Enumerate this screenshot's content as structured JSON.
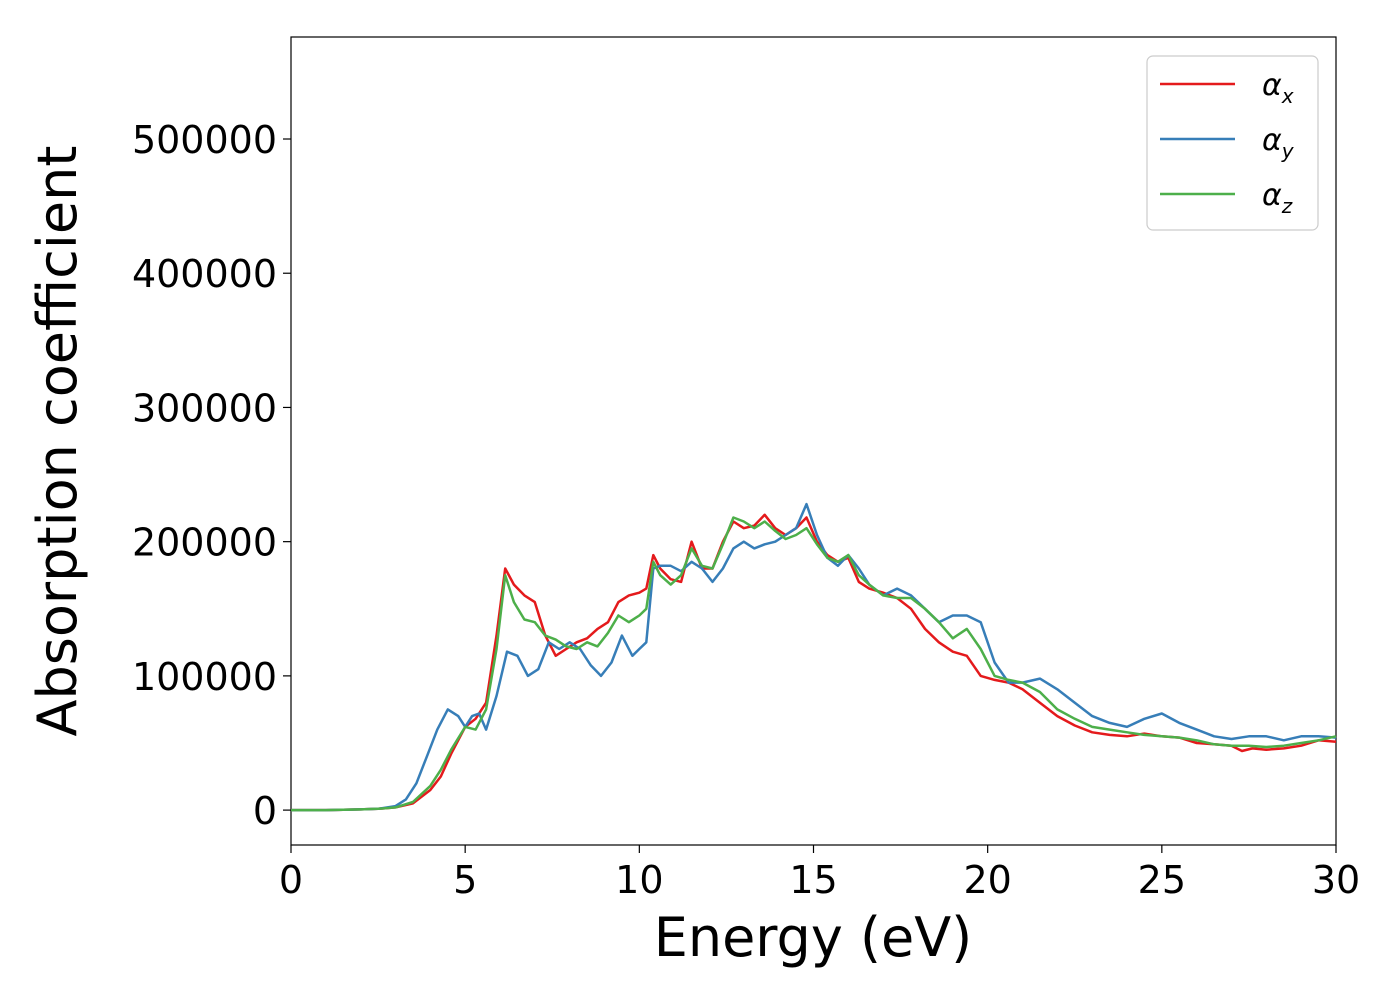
{
  "chart_data": {
    "type": "line",
    "xlabel": "Energy (eV)",
    "ylabel": "Absorption coefficient",
    "xlim": [
      0,
      30
    ],
    "ylim": [
      -26000,
      576000
    ],
    "x_ticks": [
      "0",
      "5",
      "10",
      "15",
      "20",
      "25",
      "30"
    ],
    "y_ticks": [
      "0",
      "100000",
      "200000",
      "300000",
      "400000",
      "500000"
    ],
    "grid": false,
    "legend_position": "top-right",
    "series": [
      {
        "name": "α_x",
        "legend_base": "α",
        "legend_sub": "x",
        "color": "#e41a1c",
        "x": [
          0,
          1,
          2,
          2.5,
          3,
          3.5,
          4,
          4.3,
          4.6,
          5,
          5.3,
          5.6,
          5.9,
          6.15,
          6.4,
          6.7,
          7,
          7.3,
          7.6,
          7.9,
          8.2,
          8.5,
          8.8,
          9.1,
          9.4,
          9.7,
          10,
          10.2,
          10.4,
          10.6,
          10.9,
          11.2,
          11.5,
          11.8,
          12.1,
          12.4,
          12.7,
          13,
          13.3,
          13.6,
          13.9,
          14.2,
          14.5,
          14.8,
          15.1,
          15.4,
          15.7,
          16,
          16.3,
          16.6,
          17,
          17.4,
          17.8,
          18.2,
          18.6,
          19,
          19.4,
          19.8,
          20.2,
          20.6,
          21,
          21.5,
          22,
          22.5,
          23,
          23.5,
          24,
          24.5,
          25,
          25.5,
          26,
          26.5,
          27,
          27.3,
          27.6,
          28,
          28.5,
          29,
          29.5,
          30
        ],
        "y": [
          0,
          0,
          500,
          1000,
          2000,
          5000,
          15000,
          25000,
          42000,
          62000,
          68000,
          80000,
          130000,
          180000,
          168000,
          160000,
          155000,
          130000,
          115000,
          120000,
          125000,
          128000,
          135000,
          140000,
          155000,
          160000,
          162000,
          165000,
          190000,
          180000,
          172000,
          170000,
          200000,
          180000,
          180000,
          200000,
          215000,
          210000,
          212000,
          220000,
          210000,
          205000,
          210000,
          218000,
          200000,
          190000,
          185000,
          188000,
          170000,
          165000,
          162000,
          158000,
          150000,
          135000,
          125000,
          118000,
          115000,
          100000,
          97000,
          95000,
          90000,
          80000,
          70000,
          63000,
          58000,
          56000,
          55000,
          57000,
          55000,
          54000,
          50000,
          49000,
          48000,
          44000,
          46000,
          45000,
          46000,
          48000,
          52000,
          51000
        ]
      },
      {
        "name": "α_y",
        "legend_base": "α",
        "legend_sub": "y",
        "color": "#377eb8",
        "x": [
          0,
          1,
          2,
          2.5,
          3,
          3.3,
          3.6,
          3.9,
          4.2,
          4.5,
          4.8,
          5,
          5.2,
          5.4,
          5.6,
          5.9,
          6.2,
          6.5,
          6.8,
          7.1,
          7.4,
          7.7,
          8,
          8.3,
          8.6,
          8.9,
          9.2,
          9.5,
          9.8,
          10,
          10.2,
          10.4,
          10.6,
          10.9,
          11.2,
          11.5,
          11.8,
          12.1,
          12.4,
          12.7,
          13,
          13.3,
          13.6,
          13.9,
          14.2,
          14.5,
          14.8,
          15.1,
          15.4,
          15.7,
          16,
          16.3,
          16.6,
          17,
          17.4,
          17.8,
          18.2,
          18.6,
          19,
          19.4,
          19.8,
          20.2,
          20.6,
          21,
          21.5,
          22,
          22.5,
          23,
          23.5,
          24,
          24.5,
          25,
          25.5,
          26,
          26.5,
          27,
          27.5,
          28,
          28.5,
          29,
          29.5,
          30
        ],
        "y": [
          0,
          0,
          500,
          1000,
          3000,
          8000,
          20000,
          40000,
          60000,
          75000,
          70000,
          62000,
          70000,
          72000,
          60000,
          85000,
          118000,
          115000,
          100000,
          105000,
          125000,
          120000,
          125000,
          120000,
          108000,
          100000,
          110000,
          130000,
          115000,
          120000,
          125000,
          180000,
          182000,
          182000,
          178000,
          185000,
          180000,
          170000,
          180000,
          195000,
          200000,
          195000,
          198000,
          200000,
          205000,
          210000,
          228000,
          205000,
          188000,
          182000,
          190000,
          180000,
          168000,
          160000,
          165000,
          160000,
          150000,
          140000,
          145000,
          145000,
          140000,
          110000,
          95000,
          95000,
          98000,
          90000,
          80000,
          70000,
          65000,
          62000,
          68000,
          72000,
          65000,
          60000,
          55000,
          53000,
          55000,
          55000,
          52000,
          55000,
          55000,
          54000
        ]
      },
      {
        "name": "α_z",
        "legend_base": "α",
        "legend_sub": "z",
        "color": "#4daf4a",
        "x": [
          0,
          1,
          2,
          2.5,
          3,
          3.5,
          4,
          4.3,
          4.6,
          5,
          5.3,
          5.6,
          5.9,
          6.15,
          6.4,
          6.7,
          7,
          7.3,
          7.6,
          7.9,
          8.2,
          8.5,
          8.8,
          9.1,
          9.4,
          9.7,
          10,
          10.2,
          10.4,
          10.6,
          10.9,
          11.2,
          11.5,
          11.8,
          12.1,
          12.4,
          12.7,
          13,
          13.3,
          13.6,
          13.9,
          14.2,
          14.5,
          14.8,
          15.1,
          15.4,
          15.7,
          16,
          16.3,
          16.6,
          17,
          17.4,
          17.8,
          18.2,
          18.6,
          19,
          19.4,
          19.8,
          20.2,
          20.6,
          21,
          21.5,
          22,
          22.5,
          23,
          23.5,
          24,
          24.5,
          25,
          25.5,
          26,
          26.5,
          27,
          27.5,
          28,
          28.5,
          29,
          29.5,
          30
        ],
        "y": [
          0,
          0,
          500,
          1000,
          2000,
          6000,
          18000,
          30000,
          45000,
          62000,
          60000,
          75000,
          120000,
          175000,
          155000,
          142000,
          140000,
          130000,
          127000,
          122000,
          120000,
          125000,
          122000,
          132000,
          145000,
          140000,
          145000,
          150000,
          185000,
          175000,
          168000,
          175000,
          195000,
          182000,
          180000,
          198000,
          218000,
          215000,
          210000,
          215000,
          208000,
          202000,
          205000,
          210000,
          198000,
          188000,
          185000,
          190000,
          175000,
          168000,
          160000,
          158000,
          158000,
          150000,
          140000,
          128000,
          135000,
          120000,
          100000,
          97000,
          95000,
          88000,
          75000,
          68000,
          62000,
          60000,
          58000,
          56000,
          55000,
          54000,
          52000,
          49000,
          48000,
          48000,
          47000,
          48000,
          50000,
          52000,
          55000
        ]
      }
    ]
  }
}
